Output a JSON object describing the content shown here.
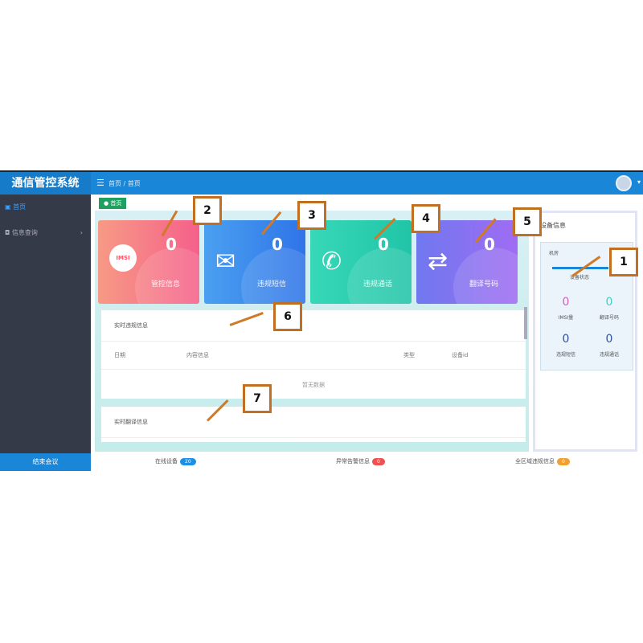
{
  "app": {
    "title": "通信管控系统",
    "breadcrumb": [
      "首页",
      "首页"
    ],
    "tab": "首页",
    "end_button": "结束会议"
  },
  "sidebar": {
    "items": [
      {
        "label": "首页",
        "active": true
      },
      {
        "label": "信息查询"
      }
    ]
  },
  "cards": [
    {
      "value": "0",
      "label": "管控信息",
      "icon": "imsi-icon",
      "badge": "IMSI",
      "color": "#f76a7a"
    },
    {
      "value": "0",
      "label": "违规短信",
      "icon": "mail-icon",
      "color": "#3a8cf0"
    },
    {
      "value": "0",
      "label": "违规通话",
      "icon": "phone-icon",
      "color": "#2ccfb0"
    },
    {
      "value": "0",
      "label": "翻译号码",
      "icon": "swap-icon",
      "color": "#8a70f0"
    }
  ],
  "violations": {
    "title": "实时违规信息",
    "columns": [
      "日期",
      "内容信息",
      "类型",
      "设备id"
    ],
    "empty": "暂无数据"
  },
  "translations": {
    "title": "实时翻译信息"
  },
  "device": {
    "title": "设备信息",
    "room": "机房",
    "status_label": "设备状态",
    "stats": [
      {
        "value": "0",
        "label": "IMSI量",
        "color": "#d060c0"
      },
      {
        "value": "0",
        "label": "翻译号码",
        "color": "#40d0c0"
      },
      {
        "value": "0",
        "label": "违规短信",
        "color": "#3050a0"
      },
      {
        "value": "0",
        "label": "违规通话",
        "color": "#3050a0"
      }
    ]
  },
  "footer": [
    {
      "label": "在线设备",
      "value": "20",
      "color": "#1a90e8"
    },
    {
      "label": "异常告警信息",
      "value": "0",
      "color": "#f05050"
    },
    {
      "label": "全区域违规信息",
      "value": "0",
      "color": "#f0a030"
    }
  ],
  "annotations": [
    "1",
    "2",
    "3",
    "4",
    "5",
    "6",
    "7"
  ]
}
